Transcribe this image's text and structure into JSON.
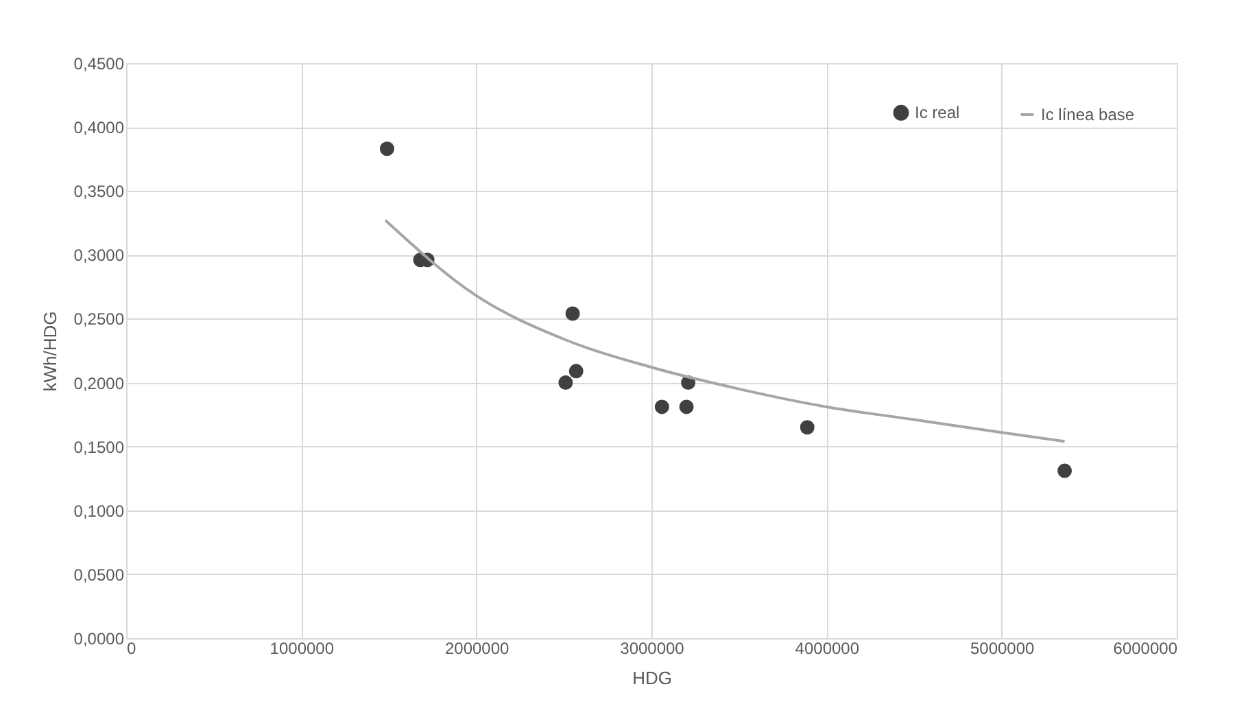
{
  "chart_data": {
    "type": "scatter",
    "xlabel": "HDG",
    "ylabel": "kWh/HDG",
    "series": [
      {
        "name": "Ic real",
        "color": "#404040",
        "marker": "circle",
        "x": [
          1490000,
          1680000,
          1720000,
          2550000,
          2510000,
          2570000,
          3060000,
          3210000,
          3200000,
          3890000,
          5360000
        ],
        "values": [
          0.383,
          0.296,
          0.296,
          0.254,
          0.2,
          0.209,
          0.181,
          0.2,
          0.181,
          0.165,
          0.131
        ]
      },
      {
        "name": "Ic línea base",
        "type": "line",
        "color": "#a6a6a6",
        "line_style": "solid",
        "x": [
          1480000,
          2000000,
          2500000,
          3000000,
          3500000,
          4000000,
          4500000,
          5000000,
          5360000
        ],
        "values": [
          0.327,
          0.268,
          0.234,
          0.212,
          0.195,
          0.181,
          0.171,
          0.161,
          0.154
        ]
      }
    ],
    "xlim": [
      0,
      6000000
    ],
    "xticks": [
      0,
      1000000,
      2000000,
      3000000,
      4000000,
      5000000,
      6000000
    ],
    "ylim": [
      0,
      0.45
    ],
    "yticks": [
      {
        "value": 0,
        "label": "0,0000"
      },
      {
        "value": 0.05,
        "label": "0,0500"
      },
      {
        "value": 0.1,
        "label": "0,1000"
      },
      {
        "value": 0.15,
        "label": "0,1500"
      },
      {
        "value": 0.2,
        "label": "0,2000"
      },
      {
        "value": 0.25,
        "label": "0,2500"
      },
      {
        "value": 0.3,
        "label": "0,3000"
      },
      {
        "value": 0.35,
        "label": "0,3500"
      },
      {
        "value": 0.4,
        "label": "0,4000"
      },
      {
        "value": 0.45,
        "label": "0,4500"
      }
    ],
    "grid": true,
    "legend": "top right"
  }
}
